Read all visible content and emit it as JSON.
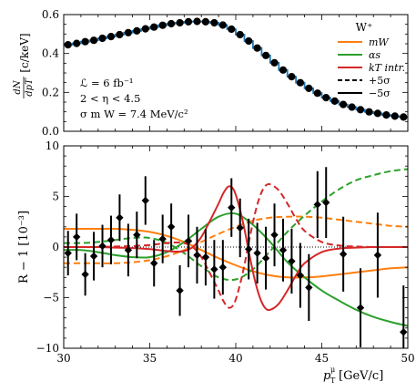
{
  "chart_data": [
    {
      "type": "line",
      "panel": "top",
      "ylabel_num": "dN",
      "ylabel_den": "dpT",
      "ylabel_unit": "[c/keV]",
      "xlim": [
        30,
        50
      ],
      "ylim": [
        0.0,
        0.6
      ],
      "yticks": [
        "0.0",
        "0.2",
        "0.4",
        "0.6"
      ],
      "annotations": [
        "ℒ = 6 fb⁻¹",
        "2 < η < 4.5",
        "σ m W = 7.4 MeV/c²"
      ],
      "legend": {
        "title": "W⁺",
        "placement": "top-right",
        "entries": [
          "mW",
          "αs",
          "kT intr.",
          "+5σ",
          "−5σ"
        ]
      },
      "series": [
        {
          "style": "step-histogram",
          "color": "#1f77b4",
          "x": [
            30.25,
            30.75,
            31.25,
            31.75,
            32.25,
            32.75,
            33.25,
            33.75,
            34.25,
            34.75,
            35.25,
            35.75,
            36.25,
            36.75,
            37.25,
            37.75,
            38.25,
            38.75,
            39.25,
            39.75,
            40.25,
            40.75,
            41.25,
            41.75,
            42.25,
            42.75,
            43.25,
            43.75,
            44.25,
            44.75,
            45.25,
            45.75,
            46.25,
            46.75,
            47.25,
            47.75,
            48.25,
            48.75,
            49.25,
            49.75
          ],
          "values": [
            0.445,
            0.452,
            0.461,
            0.468,
            0.478,
            0.487,
            0.497,
            0.507,
            0.516,
            0.527,
            0.536,
            0.545,
            0.553,
            0.558,
            0.563,
            0.565,
            0.563,
            0.558,
            0.546,
            0.525,
            0.497,
            0.464,
            0.428,
            0.39,
            0.352,
            0.315,
            0.281,
            0.25,
            0.221,
            0.196,
            0.173,
            0.155,
            0.138,
            0.124,
            0.111,
            0.1,
            0.092,
            0.084,
            0.078,
            0.073
          ]
        }
      ],
      "points": {
        "style": "circle",
        "color": "#000000",
        "x": [
          30.25,
          30.75,
          31.25,
          31.75,
          32.25,
          32.75,
          33.25,
          33.75,
          34.25,
          34.75,
          35.25,
          35.75,
          36.25,
          36.75,
          37.25,
          37.75,
          38.25,
          38.75,
          39.25,
          39.75,
          40.25,
          40.75,
          41.25,
          41.75,
          42.25,
          42.75,
          43.25,
          43.75,
          44.25,
          44.75,
          45.25,
          45.75,
          46.25,
          46.75,
          47.25,
          47.75,
          48.25,
          48.75,
          49.25,
          49.75
        ],
        "values": [
          0.445,
          0.452,
          0.461,
          0.468,
          0.478,
          0.487,
          0.497,
          0.507,
          0.516,
          0.527,
          0.536,
          0.545,
          0.553,
          0.558,
          0.563,
          0.565,
          0.563,
          0.558,
          0.546,
          0.525,
          0.497,
          0.464,
          0.428,
          0.39,
          0.352,
          0.315,
          0.281,
          0.25,
          0.221,
          0.196,
          0.173,
          0.155,
          0.138,
          0.124,
          0.111,
          0.1,
          0.092,
          0.084,
          0.078,
          0.073
        ]
      }
    },
    {
      "type": "line",
      "panel": "bottom",
      "ylabel": "R − 1 [10⁻³]",
      "xlabel_main": "p",
      "xlabel_unit": "[GeV/c]",
      "xlim": [
        30,
        50
      ],
      "ylim": [
        -10,
        10
      ],
      "xticks": [
        "30",
        "35",
        "40",
        "45",
        "50"
      ],
      "yticks": [
        "−10",
        "−5",
        "0",
        "5",
        "10"
      ],
      "series": [
        {
          "name": "mW +5σ",
          "color": "#ff7f0e",
          "dash": false,
          "x": [
            30,
            31,
            32,
            33,
            34,
            35,
            36,
            37,
            38,
            39,
            40,
            41,
            42,
            43,
            44,
            45,
            46,
            47,
            48,
            49,
            50
          ],
          "values": [
            1.8,
            1.8,
            1.8,
            1.8,
            1.7,
            1.5,
            1.1,
            0.5,
            -0.3,
            -1.1,
            -1.8,
            -2.4,
            -2.8,
            -3.0,
            -3.0,
            -2.9,
            -2.7,
            -2.5,
            -2.3,
            -2.1,
            -2.0
          ]
        },
        {
          "name": "mW −5σ",
          "color": "#ff7f0e",
          "dash": true,
          "x": [
            30,
            31,
            32,
            33,
            34,
            35,
            36,
            37,
            38,
            39,
            40,
            41,
            42,
            43,
            44,
            45,
            46,
            47,
            48,
            49,
            50
          ],
          "values": [
            -1.6,
            -1.6,
            -1.6,
            -1.6,
            -1.5,
            -1.3,
            -0.9,
            -0.3,
            0.5,
            1.3,
            2.0,
            2.6,
            2.9,
            3.0,
            3.0,
            2.9,
            2.7,
            2.5,
            2.3,
            2.1,
            2.0
          ]
        },
        {
          "name": "αs +5σ",
          "color": "#2ca02c",
          "dash": false,
          "x": [
            30,
            31,
            32,
            33,
            34,
            35,
            36,
            37,
            38,
            39,
            40,
            41,
            42,
            43,
            44,
            45,
            46,
            47,
            48,
            49,
            50
          ],
          "values": [
            -0.3,
            -0.3,
            -0.5,
            -0.8,
            -1.0,
            -1.0,
            -0.5,
            0.5,
            1.8,
            3.0,
            3.3,
            2.2,
            0.5,
            -1.5,
            -3.0,
            -4.3,
            -5.3,
            -6.2,
            -6.9,
            -7.4,
            -7.8
          ]
        },
        {
          "name": "αs −5σ",
          "color": "#2ca02c",
          "dash": true,
          "x": [
            30,
            31,
            32,
            33,
            34,
            35,
            36,
            37,
            38,
            39,
            40,
            41,
            42,
            43,
            44,
            45,
            46,
            47,
            48,
            49,
            50
          ],
          "values": [
            0.4,
            0.4,
            0.5,
            0.7,
            0.9,
            0.9,
            0.4,
            -0.6,
            -1.9,
            -3.0,
            -3.2,
            -2.2,
            -0.4,
            1.5,
            3.1,
            4.5,
            5.7,
            6.6,
            7.1,
            7.5,
            7.7
          ]
        },
        {
          "name": "kT +5σ",
          "color": "#d62728",
          "dash": false,
          "x": [
            30,
            31,
            32,
            33,
            34,
            35,
            35.5,
            36,
            36.5,
            37,
            37.5,
            38,
            38.5,
            39,
            39.3,
            39.6,
            39.9,
            40.2,
            40.5,
            40.8,
            41.1,
            41.4,
            41.7,
            42,
            42.5,
            43,
            43.5,
            44,
            45,
            46,
            47,
            48,
            49,
            50
          ],
          "values": [
            0.0,
            0.0,
            0.0,
            -0.05,
            -0.1,
            -0.2,
            -0.3,
            -0.4,
            -0.45,
            -0.4,
            0.0,
            1.0,
            2.6,
            4.3,
            5.4,
            6.0,
            5.6,
            4.0,
            1.8,
            -0.8,
            -3.2,
            -5.0,
            -6.0,
            -6.2,
            -5.6,
            -4.3,
            -2.8,
            -1.6,
            -0.5,
            -0.15,
            -0.05,
            0.0,
            0.0,
            0.0
          ]
        },
        {
          "name": "kT −5σ",
          "color": "#d62728",
          "dash": true,
          "x": [
            30,
            31,
            32,
            33,
            34,
            35,
            35.5,
            36,
            36.5,
            37,
            37.5,
            38,
            38.5,
            39,
            39.3,
            39.6,
            39.9,
            40.2,
            40.5,
            40.8,
            41.1,
            41.4,
            41.7,
            42,
            42.5,
            43,
            43.5,
            44,
            45,
            46,
            47,
            48,
            49,
            50
          ],
          "values": [
            0.0,
            0.0,
            0.0,
            0.05,
            0.1,
            0.2,
            0.3,
            0.4,
            0.45,
            0.4,
            0.0,
            -1.0,
            -2.6,
            -4.3,
            -5.4,
            -6.0,
            -5.6,
            -4.0,
            -1.8,
            0.8,
            3.2,
            5.0,
            6.0,
            6.2,
            5.6,
            4.3,
            2.8,
            1.6,
            0.5,
            0.15,
            0.05,
            0.0,
            0.0,
            0.0
          ]
        }
      ],
      "points": {
        "style": "diamond",
        "color": "#000000",
        "x": [
          30.25,
          30.75,
          31.25,
          31.75,
          32.25,
          32.75,
          33.25,
          33.75,
          34.25,
          34.75,
          35.25,
          35.75,
          36.25,
          36.75,
          37.25,
          37.75,
          38.25,
          38.75,
          39.25,
          39.75,
          40.25,
          40.75,
          41.25,
          41.75,
          42.25,
          42.75,
          43.25,
          43.75,
          44.25,
          44.75,
          45.25,
          46.25,
          47.25,
          48.25,
          49.75
        ],
        "values": [
          -0.6,
          1.0,
          -2.7,
          -0.9,
          0.1,
          0.7,
          2.9,
          -0.3,
          1.2,
          4.6,
          -1.6,
          0.8,
          2.0,
          -4.3,
          0.6,
          -0.8,
          -1.0,
          -2.2,
          -2.0,
          3.9,
          1.9,
          -0.2,
          -0.6,
          -1.1,
          1.2,
          -0.3,
          -1.4,
          -2.8,
          -4.0,
          4.2,
          4.4,
          -0.7,
          -6.0,
          -0.8,
          -8.4
        ],
        "errors": [
          2.2,
          2.3,
          2.1,
          2.4,
          2.1,
          2.4,
          2.3,
          2.6,
          2.3,
          2.4,
          2.3,
          2.4,
          2.3,
          2.5,
          2.6,
          2.8,
          2.8,
          2.9,
          2.7,
          2.9,
          2.9,
          3.0,
          3.0,
          3.1,
          3.1,
          3.1,
          3.2,
          3.2,
          3.3,
          3.3,
          3.5,
          3.7,
          3.9,
          4.2,
          4.6
        ]
      },
      "reference_line": {
        "y": 0,
        "style": "dotted",
        "color": "#000000"
      }
    }
  ]
}
